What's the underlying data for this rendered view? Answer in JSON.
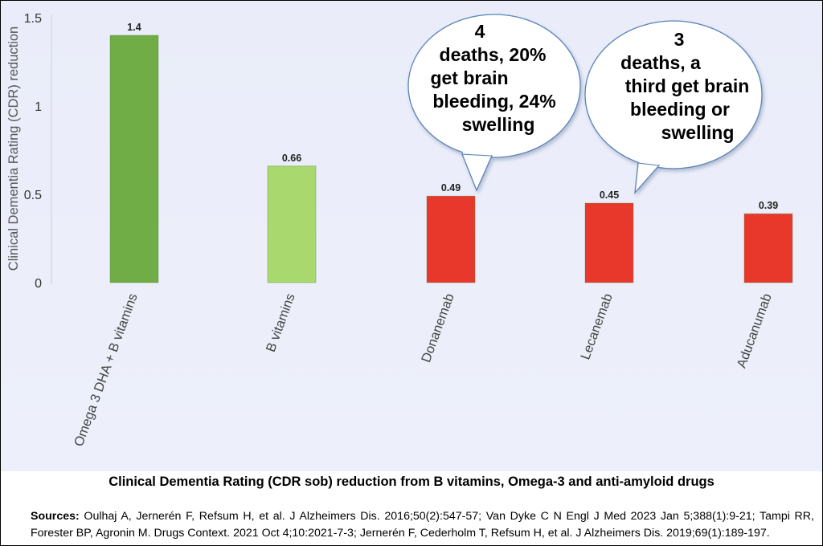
{
  "chart_data": {
    "type": "bar",
    "title": "",
    "xlabel": "",
    "ylabel": "Clinical Dementia Rating (CDR) reduction",
    "ylim": [
      0,
      1.5
    ],
    "yticks": [
      "0",
      "0.5",
      "1",
      "1.5"
    ],
    "grid": false,
    "categories": [
      "Omega 3 DHA + B vitamins",
      "B vitamins",
      "Donanemab",
      "Lecanemab",
      "Aducanumab"
    ],
    "values": [
      1.4,
      0.66,
      0.49,
      0.45,
      0.39
    ],
    "data_labels": [
      "1.4",
      "0.66",
      "0.49",
      "0.45",
      "0.39"
    ],
    "bar_colors": [
      "#70ad47",
      "#a9d86e",
      "#e8382c",
      "#e8382c",
      "#e8382c"
    ],
    "annotations": [
      {
        "category": "Donanemab",
        "lines": [
          "4",
          "deaths, 20%",
          "get brain",
          "bleeding, 24%",
          "swelling"
        ]
      },
      {
        "category": "Lecanemab",
        "lines": [
          "3",
          "deaths, a",
          "third get brain",
          "bleeding or",
          "swelling"
        ]
      }
    ]
  },
  "caption": "Clinical Dementia Rating (CDR sob) reduction from B vitamins, Omega-3 and anti-amyloid drugs",
  "sources": {
    "label": "Sources:",
    "text": "Oulhaj A, Jernerén F, Refsum H, et al. J Alzheimers Dis. 2016;50(2):547-57; Van Dyke C N Engl J Med 2023 Jan 5;388(1):9-21; Tampi RR, Forester BP, Agronin M. Drugs Context. 2021 Oct 4;10:2021-7-3; Jernerén F, Cederholm T, Refsum H, et al. J Alzheimers Dis. 2019;69(1):189-197."
  }
}
